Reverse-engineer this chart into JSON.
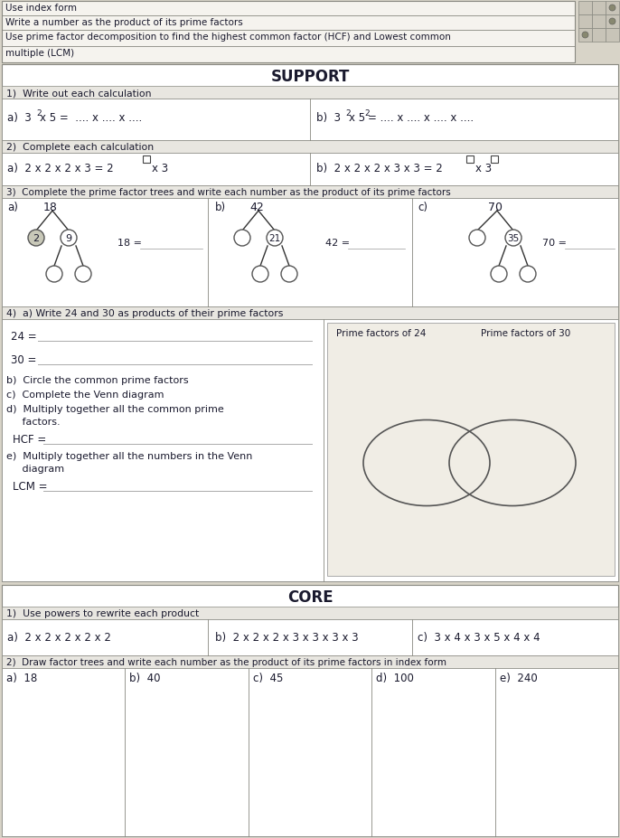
{
  "objectives": [
    "Use index form",
    "Write a number as the product of its prime factors",
    "Use prime factor decomposition to find the highest common factor (HCF) and Lowest common",
    "multiple (LCM)"
  ],
  "support_header": "SUPPORT",
  "core_header": "CORE",
  "bg_color": "#d8d4c8",
  "paper_color": "#f5f3ee",
  "white": "#ffffff",
  "row_header_color": "#e8e6e0",
  "border_color": "#888880",
  "text_color": "#1a1a2e",
  "check_bg": "#c8c4b8",
  "tree_line_color": "#333333",
  "venn_bg": "#f0eee8",
  "dotted_color": "#999999"
}
